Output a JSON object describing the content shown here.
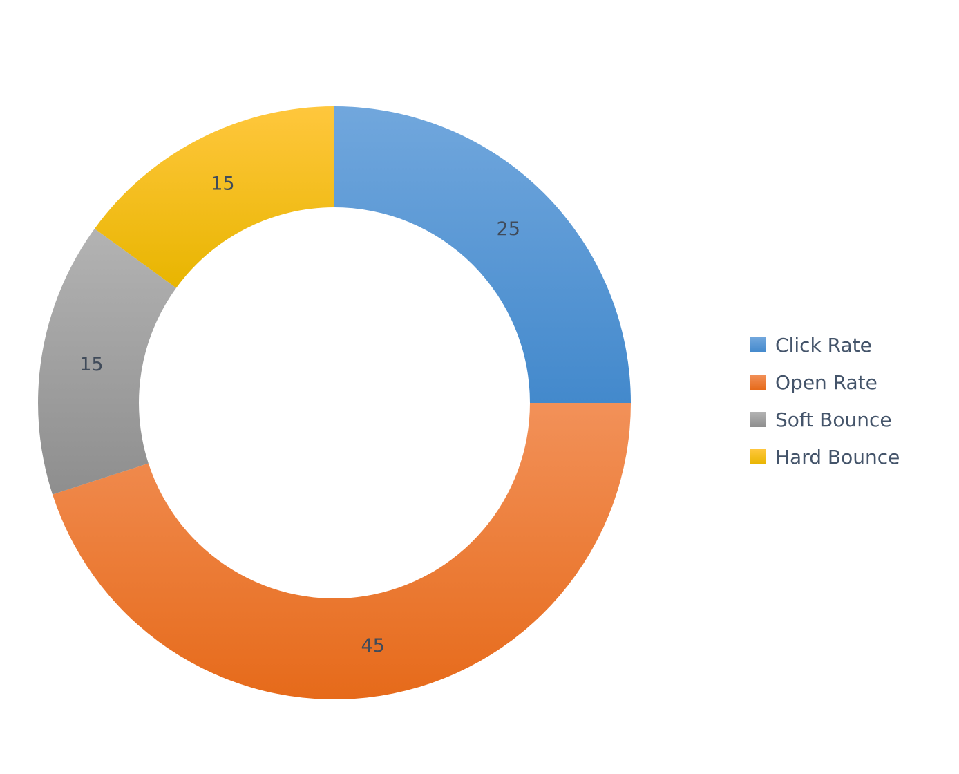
{
  "chart_data": {
    "type": "pie",
    "variant": "doughnut",
    "title": "",
    "categories": [
      "Click Rate",
      "Open Rate",
      "Soft Bounce",
      "Hard Bounce"
    ],
    "values": [
      25,
      45,
      15,
      15
    ],
    "data_labels": [
      "25",
      "45",
      "15",
      "15"
    ],
    "colors": {
      "Click Rate": [
        "#71a7dd",
        "#4389cc"
      ],
      "Open Rate": [
        "#f29159",
        "#e66a1a"
      ],
      "Soft Bounce": [
        "#b3b3b3",
        "#8e8e8e"
      ],
      "Hard Bounce": [
        "#ffc73d",
        "#e8b500"
      ]
    },
    "legend": {
      "position": "right",
      "entries": [
        "Click Rate",
        "Open Rate",
        "Soft Bounce",
        "Hard Bounce"
      ]
    },
    "start_angle": "12 o'clock",
    "direction": "clockwise"
  }
}
